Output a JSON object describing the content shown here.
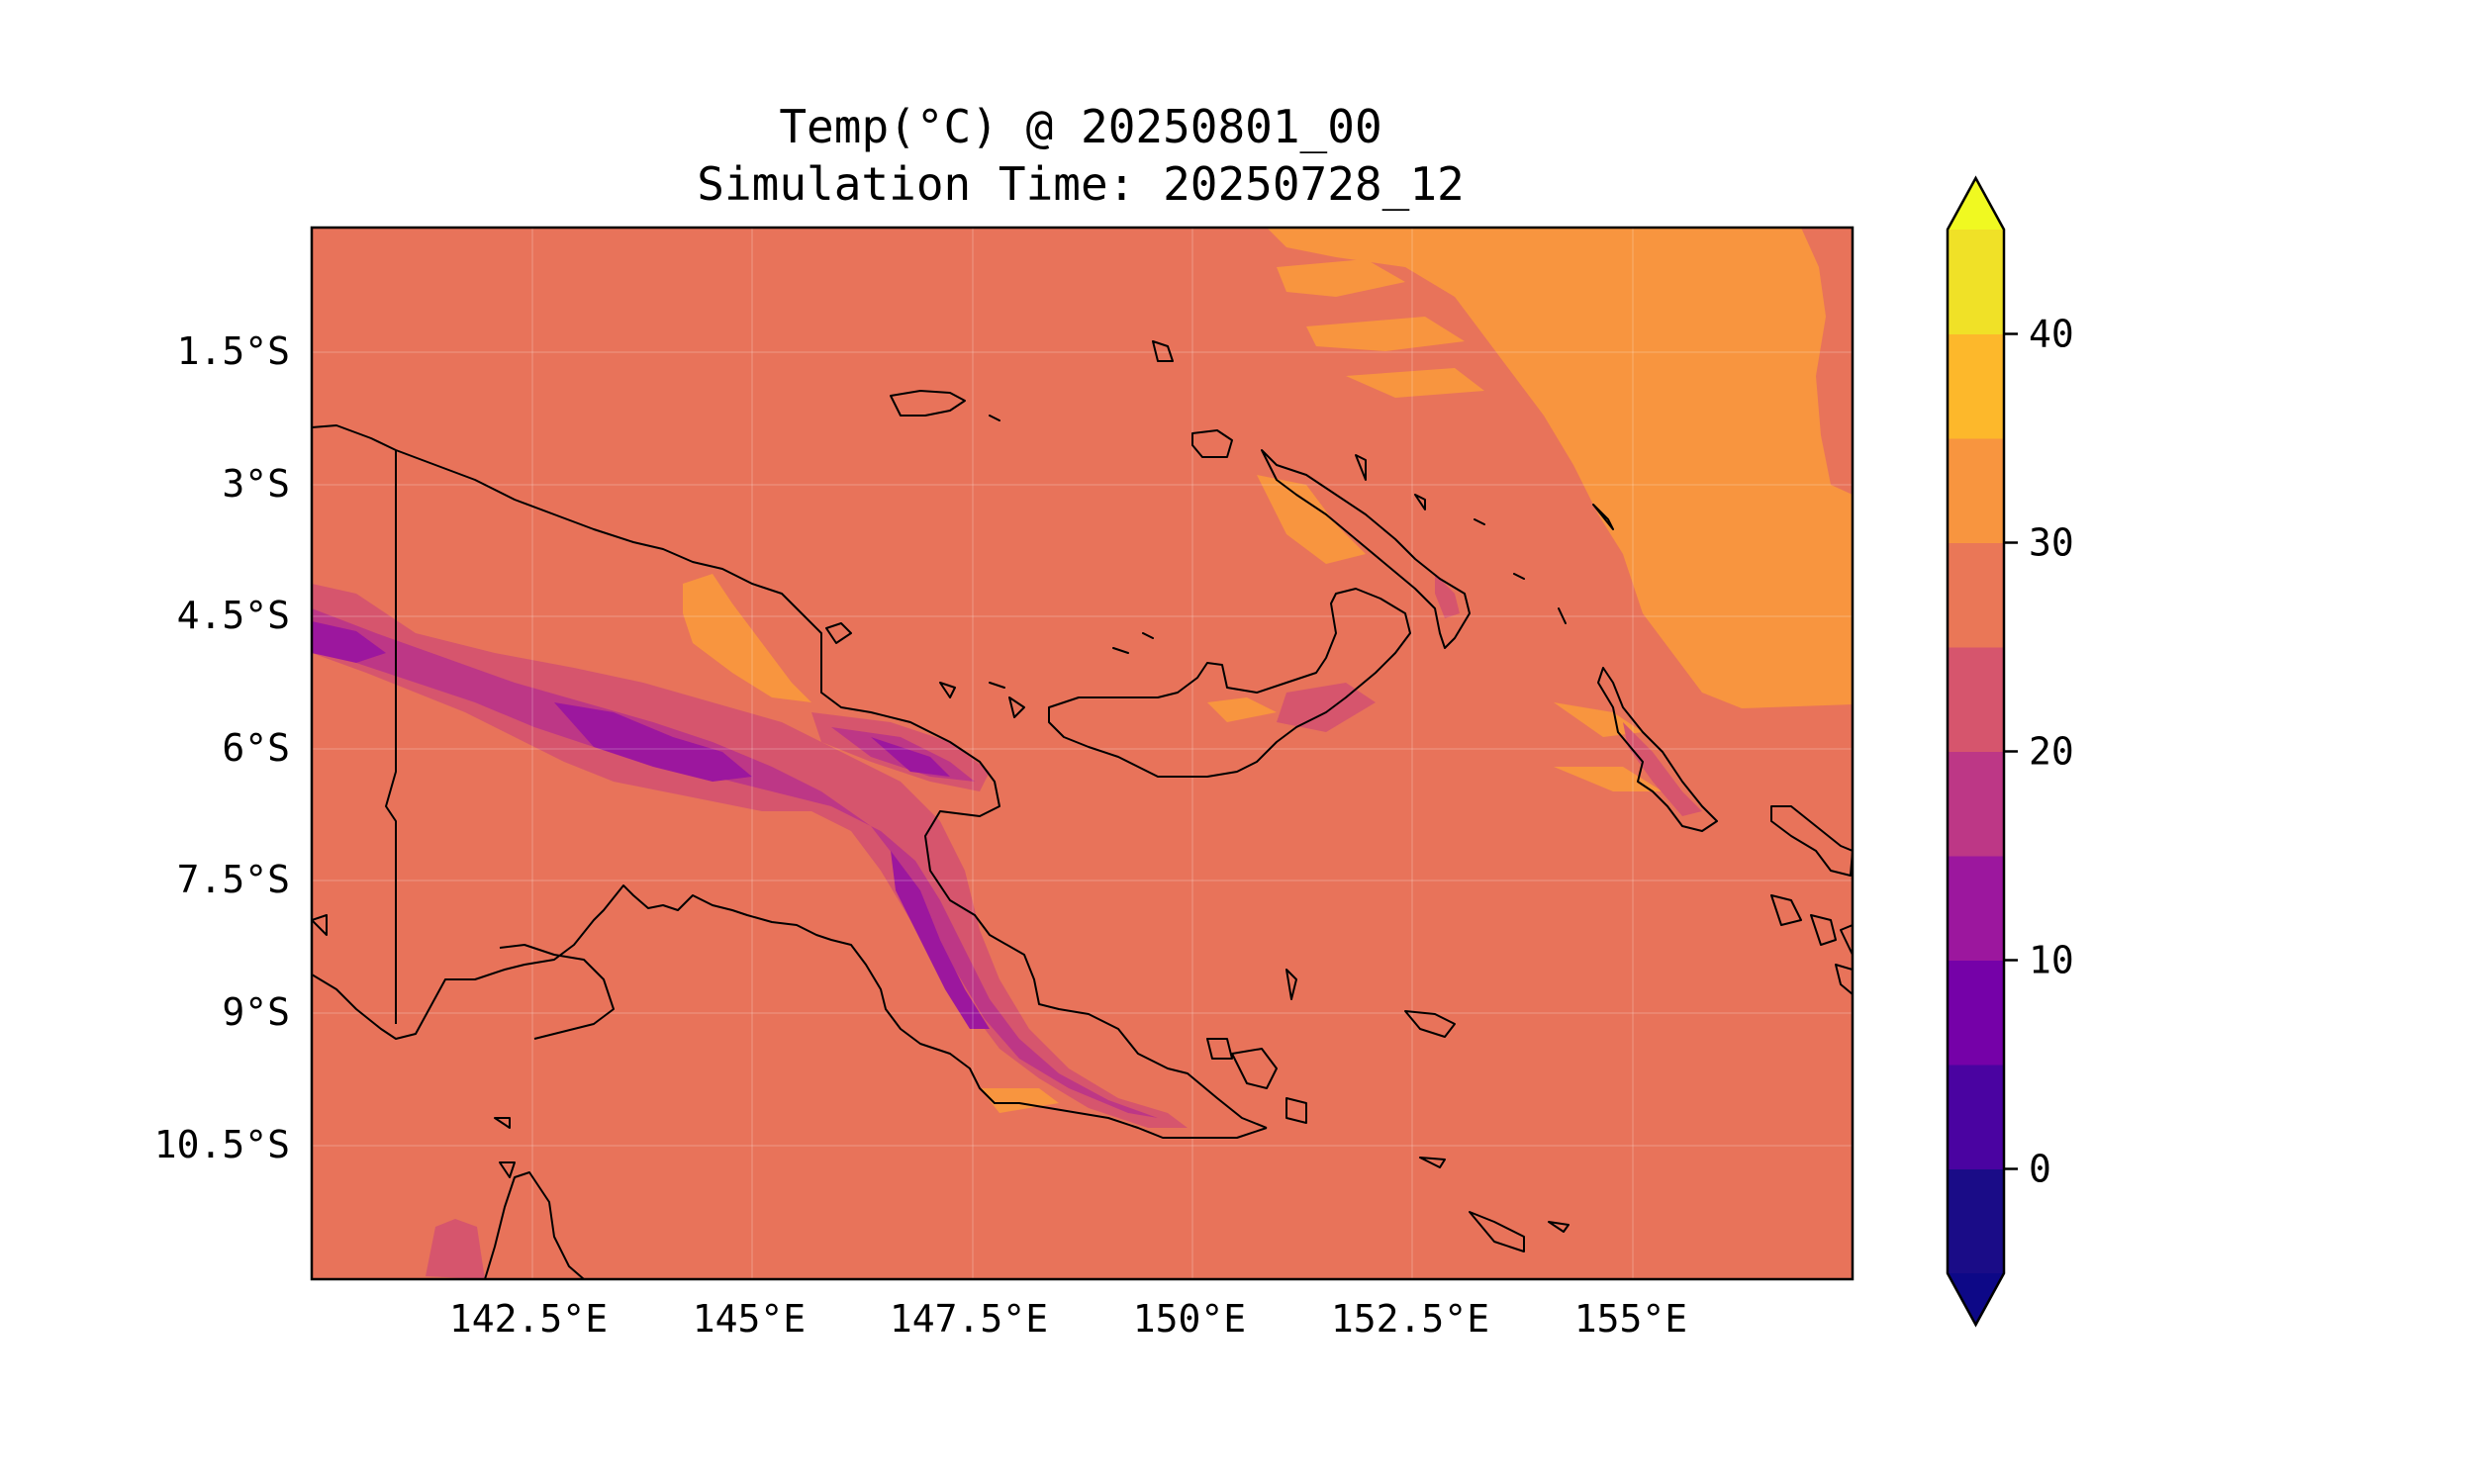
{
  "title": {
    "line1": "Temp(°C) @ 20250801_00",
    "line2": "Simulation Time: 20250728_12"
  },
  "map": {
    "field": "Temp(°C)",
    "background_level_color": "#e8735a",
    "lon_ticks": [
      "142.5°E",
      "145°E",
      "147.5°E",
      "150°E",
      "152.5°E",
      "155°E"
    ],
    "lat_ticks": [
      "1.5°S",
      "3°S",
      "4.5°S",
      "6°S",
      "7.5°S",
      "9°S",
      "10.5°S"
    ],
    "gridlines": true,
    "coastlines": true
  },
  "colorbar": {
    "colormap": "plasma",
    "extend": "both",
    "levels": [
      -5,
      0,
      5,
      10,
      15,
      20,
      25,
      30,
      35,
      40,
      45
    ],
    "colors": [
      "#1a0c87",
      "#4a03a1",
      "#7501a8",
      "#9c179e",
      "#bd3786",
      "#d6556d",
      "#ea7757",
      "#f8953f",
      "#fdb82b",
      "#f0e127"
    ],
    "under_color": "#0d0887",
    "over_color": "#f0f921",
    "tick_values": [
      0,
      10,
      20,
      30,
      40
    ],
    "tick_labels": [
      "0",
      "10",
      "20",
      "30",
      "40"
    ]
  }
}
